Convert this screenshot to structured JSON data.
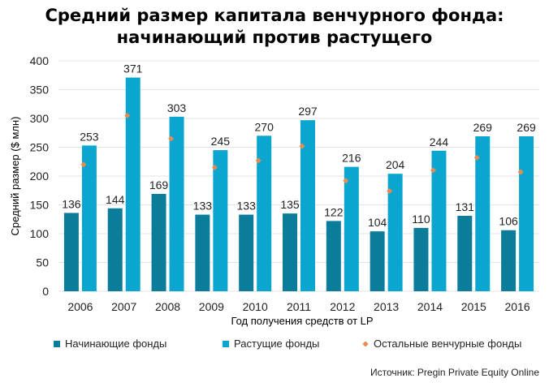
{
  "title_line1": "Средний размер капитала венчурного фонда:",
  "title_line2": "начинающий против растущего",
  "source": "Источник: Pregin Private Equity Online",
  "colors": {
    "beginning": "#0b7d9b",
    "growing": "#0ba6cf",
    "other": "#e98a4f",
    "grid": "#e3e3e3"
  },
  "chart_data": {
    "type": "bar",
    "categories": [
      "2006",
      "2007",
      "2008",
      "2009",
      "2010",
      "2011",
      "2012",
      "2013",
      "2014",
      "2015",
      "2016"
    ],
    "xlabel": "Год получения средств от LP",
    "ylabel": "Средний размер ($ млн)",
    "ylim": [
      0,
      400
    ],
    "yticks": [
      0,
      50,
      100,
      150,
      200,
      250,
      300,
      350,
      400
    ],
    "grid": true,
    "legend_position": "bottom",
    "series": [
      {
        "name": "Начинающие фонды",
        "type": "bar",
        "values": [
          136,
          144,
          169,
          133,
          133,
          135,
          122,
          104,
          110,
          131,
          106
        ]
      },
      {
        "name": "Растущие фонды",
        "type": "bar",
        "values": [
          253,
          371,
          303,
          245,
          270,
          297,
          216,
          204,
          244,
          269,
          269
        ]
      },
      {
        "name": "Остальные венчурные фонды",
        "type": "scatter",
        "values": [
          220,
          305,
          265,
          215,
          227,
          252,
          192,
          174,
          210,
          232,
          207
        ]
      }
    ]
  }
}
